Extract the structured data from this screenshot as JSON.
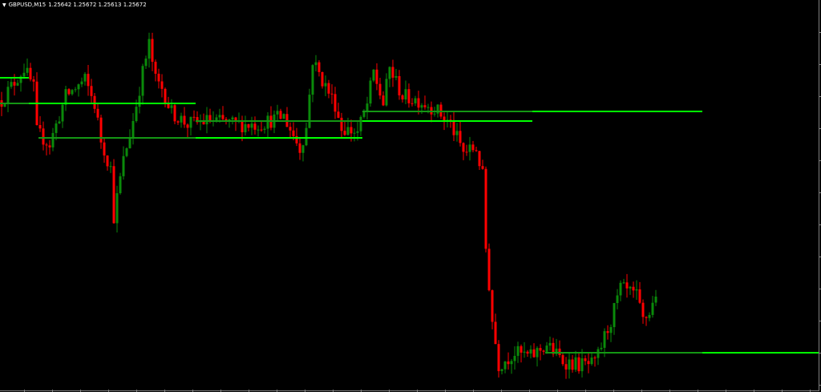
{
  "header": {
    "symbol_period": "GBPUSD,M15",
    "ohlc_text": "1.25642 1.25672 1.25613 1.25672",
    "menu_icon": "triangle-down-icon"
  },
  "colors": {
    "background": "#000000",
    "bull_candle": "#0a8a0a",
    "bear_candle": "#ff0000",
    "level_active": "#00ff00",
    "level_previous": "#149614",
    "frame": "#808080"
  },
  "chart_data": {
    "type": "candlestick",
    "symbol": "GBPUSD",
    "timeframe": "M15",
    "last_bar": {
      "open": 1.25642,
      "high": 1.25672,
      "low": 1.25613,
      "close": 1.25672
    },
    "grid": false,
    "axes_visible": false,
    "bars_in_view": 255,
    "price_path": [
      {
        "bar": 0,
        "price": 1.26652
      },
      {
        "bar": 7,
        "price": 1.26812
      },
      {
        "bar": 10,
        "price": 1.26712
      },
      {
        "bar": 11,
        "price": 1.26492
      },
      {
        "bar": 15,
        "price": 1.26432
      },
      {
        "bar": 20,
        "price": 1.26672
      },
      {
        "bar": 26,
        "price": 1.26752
      },
      {
        "bar": 29,
        "price": 1.26632
      },
      {
        "bar": 31,
        "price": 1.26452
      },
      {
        "bar": 34,
        "price": 1.26312
      },
      {
        "bar": 35,
        "price": 1.26072
      },
      {
        "bar": 38,
        "price": 1.26352
      },
      {
        "bar": 41,
        "price": 1.26552
      },
      {
        "bar": 44,
        "price": 1.26792
      },
      {
        "bar": 46,
        "price": 1.26932
      },
      {
        "bar": 48,
        "price": 1.26752
      },
      {
        "bar": 50,
        "price": 1.26712
      },
      {
        "bar": 53,
        "price": 1.26592
      },
      {
        "bar": 58,
        "price": 1.26532
      },
      {
        "bar": 65,
        "price": 1.26552
      },
      {
        "bar": 73,
        "price": 1.26532
      },
      {
        "bar": 80,
        "price": 1.26532
      },
      {
        "bar": 88,
        "price": 1.26572
      },
      {
        "bar": 93,
        "price": 1.26412
      },
      {
        "bar": 95,
        "price": 1.26512
      },
      {
        "bar": 97,
        "price": 1.26852
      },
      {
        "bar": 100,
        "price": 1.26752
      },
      {
        "bar": 104,
        "price": 1.26632
      },
      {
        "bar": 106,
        "price": 1.26512
      },
      {
        "bar": 111,
        "price": 1.26492
      },
      {
        "bar": 114,
        "price": 1.26632
      },
      {
        "bar": 116,
        "price": 1.26792
      },
      {
        "bar": 119,
        "price": 1.26632
      },
      {
        "bar": 121,
        "price": 1.26812
      },
      {
        "bar": 125,
        "price": 1.26672
      },
      {
        "bar": 130,
        "price": 1.26652
      },
      {
        "bar": 135,
        "price": 1.26612
      },
      {
        "bar": 140,
        "price": 1.26532
      },
      {
        "bar": 144,
        "price": 1.26392
      },
      {
        "bar": 148,
        "price": 1.26412
      },
      {
        "bar": 150,
        "price": 1.26272
      },
      {
        "bar": 151,
        "price": 1.25912
      },
      {
        "bar": 153,
        "price": 1.25552
      },
      {
        "bar": 155,
        "price": 1.25332
      },
      {
        "bar": 160,
        "price": 1.25392
      },
      {
        "bar": 165,
        "price": 1.25372
      },
      {
        "bar": 170,
        "price": 1.25432
      },
      {
        "bar": 175,
        "price": 1.25352
      },
      {
        "bar": 180,
        "price": 1.25332
      },
      {
        "bar": 185,
        "price": 1.25332
      },
      {
        "bar": 188,
        "price": 1.25472
      },
      {
        "bar": 190,
        "price": 1.25552
      },
      {
        "bar": 193,
        "price": 1.25712
      },
      {
        "bar": 198,
        "price": 1.25672
      },
      {
        "bar": 200,
        "price": 1.25552
      },
      {
        "bar": 202,
        "price": 1.25592
      },
      {
        "bar": 204,
        "price": 1.25672
      }
    ],
    "levels": [
      {
        "price": 1.26764,
        "previous_from": null,
        "active_from": 0,
        "to": 9
      },
      {
        "price": 1.26636,
        "previous_from": 0,
        "active_from": 9,
        "to": 61
      },
      {
        "price": 1.26464,
        "previous_from": 12,
        "active_from": 61,
        "to": 113
      },
      {
        "price": 1.26548,
        "previous_from": 61,
        "active_from": 113,
        "to": 166
      },
      {
        "price": 1.26596,
        "previous_from": 113,
        "active_from": 166,
        "to": 219
      },
      {
        "price": 1.25392,
        "previous_from": 170,
        "active_from": 219,
        "to": 256
      }
    ]
  }
}
